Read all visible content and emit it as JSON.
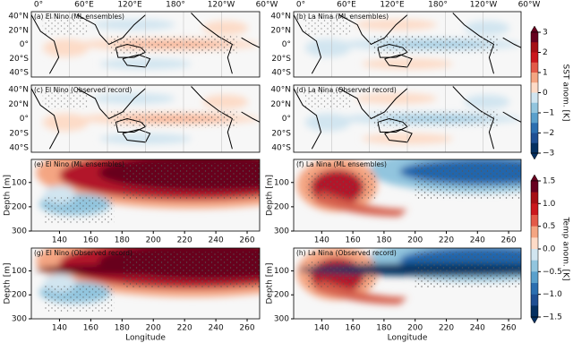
{
  "map_panels": [
    "(a) El Nino (ML ensembles)",
    "(b) La Nina (ML ensembles)",
    "(c) El Nino (Observed record)",
    "(d) La Nina (Observed record)"
  ],
  "map_xticks": [
    "0°",
    "60°E",
    "120°E",
    "180°",
    "120°W",
    "60°W"
  ],
  "map_yticks": [
    "40°N",
    "20°N",
    "0°",
    "20°S",
    "40°S"
  ],
  "depth_panels": [
    "(e) El Nino (ML ensembles)",
    "(f) La Nina (ML ensembles)",
    "(g) El Nino (Observed record)",
    "(h) La Nina (Observed record)"
  ],
  "depth_ylabel": "Depth [m]",
  "depth_ylim": [
    300,
    5
  ],
  "depth_yticks": [
    100,
    200,
    300
  ],
  "depth_xlim": [
    122,
    268
  ],
  "depth_xticks": [
    140,
    160,
    180,
    200,
    220,
    240,
    260
  ],
  "xlabel": "Longitude",
  "sst_colorbar": {
    "label": "SST anom. [K]",
    "ticks": [
      3,
      2,
      1,
      0,
      {
        "value": -1,
        "label": "−1"
      },
      {
        "value": -2,
        "label": "−2"
      },
      {
        "value": -3,
        "label": "−3"
      }
    ]
  },
  "temp_colorbar": {
    "label": "Temp anom. [K]",
    "ticks": [
      1.5,
      {
        "value": 1,
        "label": "1.0"
      },
      0.5,
      {
        "value": 0,
        "label": "0.0"
      },
      {
        "value": -0.5,
        "label": "−0.5"
      },
      {
        "value": -1,
        "label": "−1.0"
      },
      {
        "value": -1.5,
        "label": "−1.5"
      }
    ]
  }
}
